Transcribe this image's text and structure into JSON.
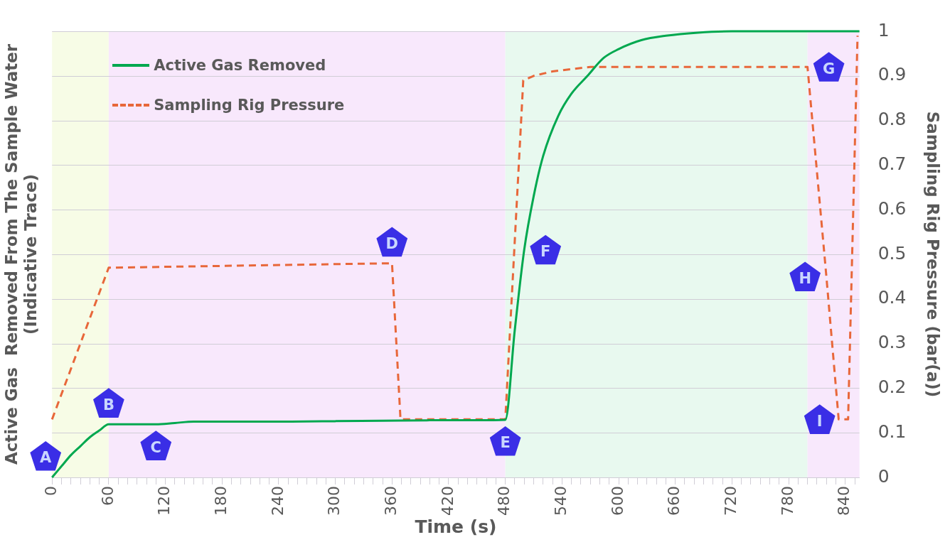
{
  "chart_data": {
    "type": "line",
    "xlabel": "Time (s)",
    "ylabel": "Sampling Rig Pressure (bar(a))",
    "y2label": "Active Gas  Removed From The Sample Water\n(Indicative Trace)",
    "series": [
      {
        "name": "Active Gas Removed",
        "color": "#00a84f",
        "line_style": "solid",
        "x": [
          0,
          10,
          20,
          30,
          40,
          50,
          60,
          80,
          110,
          130,
          150,
          200,
          250,
          300,
          350,
          400,
          450,
          480,
          490,
          500,
          510,
          520,
          536,
          550,
          567,
          584,
          600,
          624,
          650,
          684,
          720,
          744,
          800,
          855
        ],
        "values": [
          0,
          0.025,
          0.05,
          0.07,
          0.09,
          0.105,
          0.119,
          0.119,
          0.119,
          0.122,
          0.125,
          0.125,
          0.125,
          0.126,
          0.127,
          0.128,
          0.128,
          0.129,
          0.33,
          0.51,
          0.63,
          0.72,
          0.81,
          0.86,
          0.9,
          0.94,
          0.96,
          0.98,
          0.99,
          0.997,
          1,
          1,
          1,
          1
        ]
      },
      {
        "name": "Sampling Rig Pressure",
        "color": "#e8673a",
        "line_style": "dashed",
        "x": [
          0,
          60,
          360,
          369,
          480,
          499,
          510,
          530,
          570,
          800,
          820,
          833,
          843,
          853
        ],
        "values": [
          0.13,
          0.47,
          0.48,
          0.13,
          0.13,
          0.89,
          0.9,
          0.91,
          0.92,
          0.92,
          0.45,
          0.13,
          0.13,
          0.99
        ]
      }
    ],
    "xlim": [
      0,
      855
    ],
    "xticks": [
      0,
      {
        "value": 10,
        "label": null
      },
      {
        "value": 20,
        "label": null
      },
      {
        "value": 30,
        "label": null
      },
      {
        "value": 40,
        "label": null
      },
      {
        "value": 50,
        "label": null
      },
      60,
      {
        "value": 70,
        "label": null
      },
      {
        "value": 80,
        "label": null
      },
      {
        "value": 90,
        "label": null
      },
      {
        "value": 100,
        "label": null
      },
      {
        "value": 110,
        "label": null
      },
      120,
      {
        "value": 130,
        "label": null
      },
      {
        "value": 140,
        "label": null
      },
      {
        "value": 150,
        "label": null
      },
      {
        "value": 160,
        "label": null
      },
      {
        "value": 170,
        "label": null
      },
      180,
      {
        "value": 190,
        "label": null
      },
      {
        "value": 200,
        "label": null
      },
      {
        "value": 210,
        "label": null
      },
      {
        "value": 220,
        "label": null
      },
      {
        "value": 230,
        "label": null
      },
      240,
      {
        "value": 250,
        "label": null
      },
      {
        "value": 260,
        "label": null
      },
      {
        "value": 270,
        "label": null
      },
      {
        "value": 280,
        "label": null
      },
      {
        "value": 290,
        "label": null
      },
      300,
      {
        "value": 310,
        "label": null
      },
      {
        "value": 320,
        "label": null
      },
      {
        "value": 330,
        "label": null
      },
      {
        "value": 340,
        "label": null
      },
      {
        "value": 350,
        "label": null
      },
      360,
      {
        "value": 370,
        "label": null
      },
      {
        "value": 380,
        "label": null
      },
      {
        "value": 390,
        "label": null
      },
      {
        "value": 400,
        "label": null
      },
      {
        "value": 410,
        "label": null
      },
      420,
      {
        "value": 430,
        "label": null
      },
      {
        "value": 440,
        "label": null
      },
      {
        "value": 450,
        "label": null
      },
      {
        "value": 460,
        "label": null
      },
      {
        "value": 470,
        "label": null
      },
      480,
      {
        "value": 490,
        "label": null
      },
      {
        "value": 500,
        "label": null
      },
      {
        "value": 510,
        "label": null
      },
      {
        "value": 520,
        "label": null
      },
      {
        "value": 530,
        "label": null
      },
      540,
      {
        "value": 550,
        "label": null
      },
      {
        "value": 560,
        "label": null
      },
      {
        "value": 570,
        "label": null
      },
      {
        "value": 580,
        "label": null
      },
      {
        "value": 590,
        "label": null
      },
      600,
      {
        "value": 610,
        "label": null
      },
      {
        "value": 620,
        "label": null
      },
      {
        "value": 630,
        "label": null
      },
      {
        "value": 640,
        "label": null
      },
      {
        "value": 650,
        "label": null
      },
      660,
      {
        "value": 670,
        "label": null
      },
      {
        "value": 680,
        "label": null
      },
      {
        "value": 690,
        "label": null
      },
      {
        "value": 700,
        "label": null
      },
      {
        "value": 710,
        "label": null
      },
      720,
      {
        "value": 730,
        "label": null
      },
      {
        "value": 740,
        "label": null
      },
      {
        "value": 750,
        "label": null
      },
      {
        "value": 760,
        "label": null
      },
      {
        "value": 770,
        "label": null
      },
      780,
      {
        "value": 790,
        "label": null
      },
      {
        "value": 800,
        "label": null
      },
      {
        "value": 810,
        "label": null
      },
      {
        "value": 820,
        "label": null
      },
      {
        "value": 830,
        "label": null
      },
      840,
      {
        "value": 850,
        "label": null
      }
    ],
    "ylim": [
      0,
      1
    ],
    "yticks": [
      0,
      0.1,
      0.2,
      0.3,
      0.4,
      0.5,
      0.6,
      0.7,
      0.8,
      0.9,
      1
    ],
    "bands": [
      {
        "axis": "x",
        "from": 0,
        "to": 60,
        "color": "#f7fce6"
      },
      {
        "axis": "x",
        "from": 60,
        "to": 480,
        "color": "#f8e8fc"
      },
      {
        "axis": "x",
        "from": 480,
        "to": 800,
        "color": "#e8f9ef"
      },
      {
        "axis": "x",
        "from": 800,
        "to": 855,
        "color": "#f8e8fc"
      }
    ],
    "annotations": [
      {
        "text": "A",
        "x": 0,
        "y": 0
      },
      {
        "text": "B",
        "x": 60,
        "y": 0.119
      },
      {
        "text": "C",
        "x": 110,
        "y": 0.119
      },
      {
        "text": "D",
        "x": 360,
        "y": 0.48
      },
      {
        "text": "E",
        "x": 480,
        "y": 0.129
      },
      {
        "text": "F",
        "x": 500,
        "y": 0.51
      },
      {
        "text": "G",
        "x": 800,
        "y": 0.92
      },
      {
        "text": "H",
        "x": 820,
        "y": 0.45
      },
      {
        "text": "I",
        "x": 843,
        "y": 0.13
      }
    ],
    "grid": "y",
    "legend": "top left",
    "marker": "none"
  }
}
